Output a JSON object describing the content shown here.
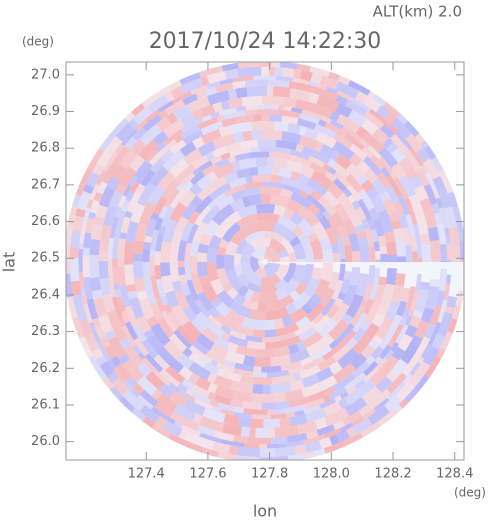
{
  "chart_data": {
    "type": "map",
    "title": "2017/10/24 14:22:30",
    "subtitle": "ALT(km) 2.0",
    "x_label": "lon",
    "y_label": "lat",
    "x_unit": "(deg)",
    "y_unit": "(deg)",
    "xlim": [
      127.14,
      128.43
    ],
    "ylim": [
      25.95,
      27.035
    ],
    "xticks": [
      127.4,
      127.6,
      127.8,
      {
        "value": 128.0,
        "label": "128.0"
      },
      128.2,
      128.4
    ],
    "yticks": [
      {
        "value": 26.0,
        "label": "26.0"
      },
      26.1,
      26.2,
      26.3,
      26.4,
      26.5,
      26.6,
      26.7,
      26.8,
      26.9,
      {
        "value": 27.0,
        "label": "27.0"
      }
    ]
  }
}
